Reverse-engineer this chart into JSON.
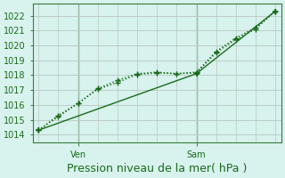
{
  "title": "Pression niveau de la mer( hPa )",
  "bg_color": "#d8f2ee",
  "grid_color": "#b8c8c0",
  "line_color": "#1a6b1a",
  "ylim": [
    1013.5,
    1022.8
  ],
  "yticks": [
    1014,
    1015,
    1016,
    1017,
    1018,
    1019,
    1020,
    1021,
    1022
  ],
  "xlim": [
    -0.3,
    12.3
  ],
  "xtick_positions": [
    2,
    8
  ],
  "xtick_labels": [
    "Ven",
    "Sam"
  ],
  "xvline_positions": [
    2,
    8
  ],
  "series1_x": [
    0,
    1,
    2,
    3,
    4,
    5,
    6,
    7,
    8,
    9,
    10,
    11,
    12
  ],
  "series1_y": [
    1014.3,
    1015.3,
    1016.1,
    1017.1,
    1017.65,
    1018.1,
    1018.2,
    1018.1,
    1018.2,
    1019.6,
    1020.5,
    1021.2,
    1022.3
  ],
  "series2_x": [
    0,
    1,
    2,
    3,
    4,
    5,
    6,
    7,
    8,
    9,
    10,
    11,
    12
  ],
  "series2_y": [
    1014.3,
    1015.2,
    1016.1,
    1017.05,
    1017.5,
    1018.05,
    1018.15,
    1018.1,
    1018.15,
    1019.5,
    1020.4,
    1021.1,
    1022.3
  ],
  "series3_x": [
    0,
    8,
    12
  ],
  "series3_y": [
    1014.3,
    1018.1,
    1022.3
  ],
  "xlabel_fontsize": 9,
  "tick_fontsize": 7,
  "figsize": [
    3.2,
    2.0
  ],
  "dpi": 100
}
